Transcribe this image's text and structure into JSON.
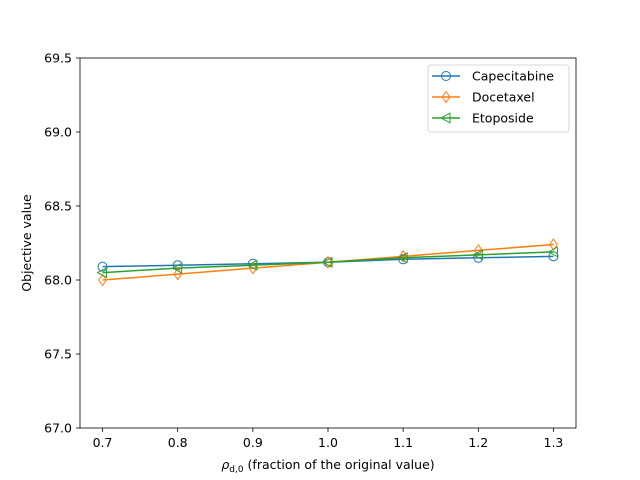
{
  "chart_data": {
    "type": "line",
    "x": [
      0.7,
      0.8,
      0.9,
      1.0,
      1.1,
      1.2,
      1.3
    ],
    "xticks": [
      "0.7",
      "0.8",
      "0.9",
      "1.0",
      "1.1",
      "1.2",
      "1.3"
    ],
    "yticks": [
      "67.0",
      "67.5",
      "68.0",
      "68.5",
      "69.0",
      "69.5"
    ],
    "xlim": [
      0.67,
      1.33
    ],
    "ylim": [
      67.0,
      69.5
    ],
    "xlabel_symbol": "ρ",
    "xlabel_subscript": "d,0",
    "xlabel_rest": " (fraction of the original value)",
    "ylabel": "Objective value",
    "grid": false,
    "legend_position": "top-right",
    "series": [
      {
        "name": "Capecitabine",
        "color": "#1f77b4",
        "marker": "circle",
        "values": [
          68.09,
          68.1,
          68.11,
          68.12,
          68.14,
          68.15,
          68.16
        ]
      },
      {
        "name": "Docetaxel",
        "color": "#ff7f0e",
        "marker": "thin-diamond",
        "values": [
          68.0,
          68.04,
          68.08,
          68.12,
          68.16,
          68.2,
          68.24
        ]
      },
      {
        "name": "Etoposide",
        "color": "#2ca02c",
        "marker": "triangle-left",
        "values": [
          68.05,
          68.08,
          68.1,
          68.12,
          68.15,
          68.17,
          68.19
        ]
      }
    ]
  }
}
